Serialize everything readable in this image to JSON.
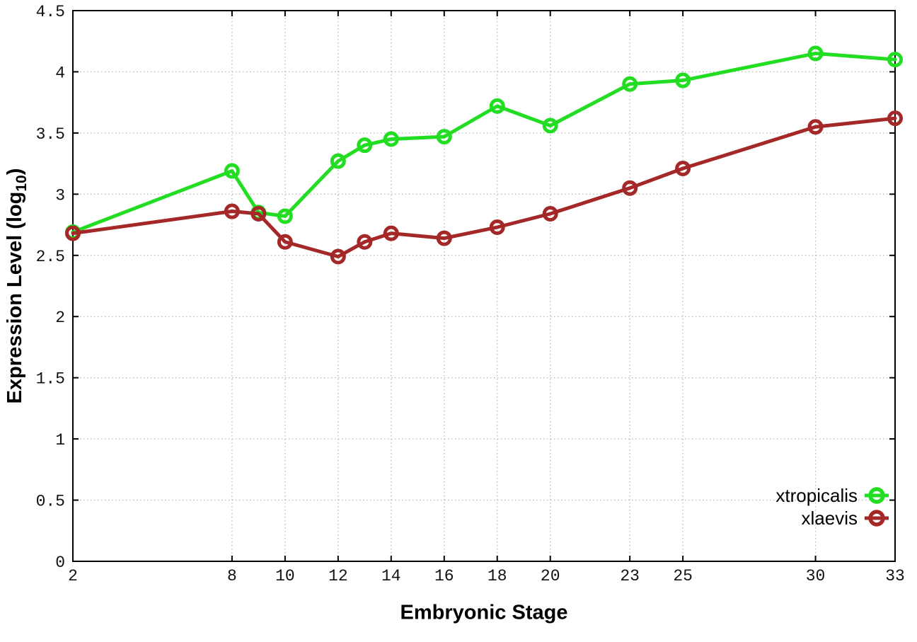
{
  "chart_data": {
    "type": "line",
    "title": "",
    "xlabel": "Embryonic Stage",
    "ylabel": "Expression Level (log10)",
    "ylabel_parts": {
      "main": "Expression Level (log",
      "sub": "10",
      "end": ")"
    },
    "x": [
      2,
      8,
      9,
      10,
      12,
      13,
      14,
      16,
      18,
      20,
      23,
      25,
      30,
      33
    ],
    "series": [
      {
        "name": "xtropicalis",
        "color": "#22dd22",
        "values": [
          2.69,
          3.19,
          2.85,
          2.82,
          3.27,
          3.4,
          3.45,
          3.47,
          3.72,
          3.56,
          3.9,
          3.93,
          4.15,
          4.1
        ]
      },
      {
        "name": "xlaevis",
        "color": "#a52828",
        "values": [
          2.68,
          2.86,
          2.84,
          2.61,
          2.49,
          2.61,
          2.68,
          2.64,
          2.73,
          2.84,
          3.05,
          3.21,
          3.55,
          3.62
        ]
      }
    ],
    "xticks": [
      2,
      8,
      10,
      12,
      14,
      16,
      18,
      20,
      23,
      25,
      30,
      33
    ],
    "yticks": [
      0,
      0.5,
      1,
      1.5,
      2,
      2.5,
      3,
      3.5,
      4,
      4.5
    ],
    "xlim": [
      2,
      33
    ],
    "ylim": [
      0,
      4.5
    ],
    "grid": true,
    "legend_position": "inside-bottom-right",
    "legend_entries": [
      "xtropicalis",
      "xlaevis"
    ]
  },
  "ui": {
    "background_color": "#ffffff",
    "border_color": "#000000",
    "grid_color": "#b9b9b9",
    "tick_label_color": "#111111"
  }
}
